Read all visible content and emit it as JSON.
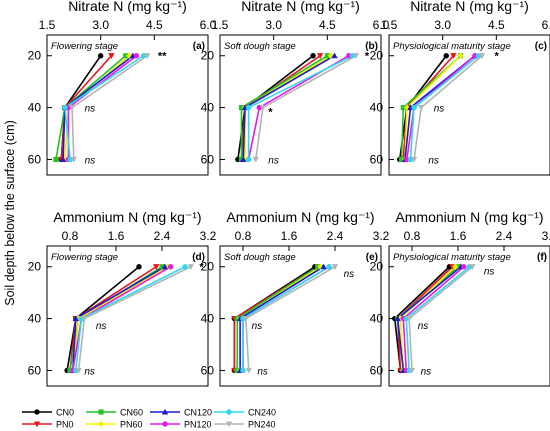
{
  "y_axis_label": "Soil depth below the surface (cm)",
  "y_ticks": [
    20,
    40,
    60
  ],
  "legend": [
    {
      "name": "CN0",
      "color": "#000000",
      "marker": "circle"
    },
    {
      "name": "PN0",
      "color": "#e8141c",
      "marker": "tri-down"
    },
    {
      "name": "CN60",
      "color": "#22c422",
      "marker": "square"
    },
    {
      "name": "PN60",
      "color": "#f5f000",
      "marker": "diamond"
    },
    {
      "name": "CN120",
      "color": "#1b1bd6",
      "marker": "tri-up"
    },
    {
      "name": "PN120",
      "color": "#e818e8",
      "marker": "circle"
    },
    {
      "name": "CN240",
      "color": "#2ed9f0",
      "marker": "circle"
    },
    {
      "name": "PN240",
      "color": "#b4b4b4",
      "marker": "tri-down"
    }
  ],
  "chart_data": [
    {
      "type": "line",
      "panel": "(a)",
      "stage": "Flowering stage",
      "title": "Nitrate N (mg kg⁻¹)",
      "xlim": [
        1.5,
        6.0
      ],
      "xticks": [
        "1.5",
        "3.0",
        "4.5",
        "6.0"
      ],
      "depths": [
        20,
        40,
        60
      ],
      "series": [
        {
          "name": "CN0",
          "values": [
            3.0,
            2.0,
            1.9
          ]
        },
        {
          "name": "PN0",
          "values": [
            3.3,
            2.0,
            1.9
          ]
        },
        {
          "name": "CN60",
          "values": [
            3.7,
            2.0,
            1.75
          ]
        },
        {
          "name": "PN60",
          "values": [
            3.8,
            2.1,
            2.0
          ]
        },
        {
          "name": "CN120",
          "values": [
            3.9,
            2.0,
            1.95
          ]
        },
        {
          "name": "PN120",
          "values": [
            4.0,
            2.1,
            2.1
          ]
        },
        {
          "name": "CN240",
          "values": [
            4.2,
            2.0,
            2.15
          ]
        },
        {
          "name": "PN240",
          "values": [
            4.3,
            2.2,
            2.25
          ]
        }
      ],
      "annotations": [
        {
          "text": "**",
          "depth": 20,
          "x": 4.6
        },
        {
          "text": "ns",
          "depth": 40,
          "x": 2.55
        },
        {
          "text": "ns",
          "depth": 60,
          "x": 2.55
        }
      ]
    },
    {
      "type": "line",
      "panel": "(b)",
      "stage": "Soft dough stage",
      "title": "Nitrate N (mg kg⁻¹)",
      "xlim": [
        1.5,
        6.0
      ],
      "xticks": [
        "1.5",
        "3.0",
        "4.5",
        "6.0"
      ],
      "depths": [
        20,
        40,
        60
      ],
      "series": [
        {
          "name": "CN0",
          "values": [
            4.1,
            2.2,
            2.0
          ]
        },
        {
          "name": "PN0",
          "values": [
            4.3,
            2.2,
            2.1
          ]
        },
        {
          "name": "CN60",
          "values": [
            4.5,
            2.1,
            2.1
          ]
        },
        {
          "name": "PN60",
          "values": [
            4.6,
            2.2,
            2.2
          ]
        },
        {
          "name": "CN120",
          "values": [
            4.7,
            2.2,
            2.15
          ]
        },
        {
          "name": "PN120",
          "values": [
            5.1,
            2.6,
            2.3
          ]
        },
        {
          "name": "CN240",
          "values": [
            5.2,
            2.3,
            2.3
          ]
        },
        {
          "name": "PN240",
          "values": [
            5.3,
            2.7,
            2.5
          ]
        }
      ],
      "annotations": [
        {
          "text": "*",
          "depth": 20,
          "x": 5.55
        },
        {
          "text": "*",
          "depth": 41.5,
          "x": 2.85
        },
        {
          "text": "ns",
          "depth": 60,
          "x": 2.85
        }
      ]
    },
    {
      "type": "line",
      "panel": "(c)",
      "stage": "Physiological maturity stage",
      "title": "Nitrate N (mg kg⁻¹)",
      "xlim": [
        1.5,
        6.0
      ],
      "xticks": [
        "1.5",
        "3.0",
        "4.5",
        "6.0"
      ],
      "depths": [
        20,
        40,
        60
      ],
      "series": [
        {
          "name": "CN0",
          "values": [
            3.1,
            2.0,
            1.8
          ]
        },
        {
          "name": "PN0",
          "values": [
            3.3,
            2.0,
            1.9
          ]
        },
        {
          "name": "CN60",
          "values": [
            3.5,
            1.9,
            1.85
          ]
        },
        {
          "name": "PN60",
          "values": [
            3.5,
            2.0,
            1.95
          ]
        },
        {
          "name": "CN120",
          "values": [
            3.9,
            2.1,
            1.95
          ]
        },
        {
          "name": "PN120",
          "values": [
            3.9,
            2.2,
            2.0
          ]
        },
        {
          "name": "CN240",
          "values": [
            4.0,
            2.2,
            2.1
          ]
        },
        {
          "name": "PN240",
          "values": [
            4.1,
            2.4,
            2.2
          ]
        }
      ],
      "annotations": [
        {
          "text": "*",
          "depth": 20,
          "x": 4.45
        },
        {
          "text": "ns",
          "depth": 40,
          "x": 2.75
        },
        {
          "text": "ns",
          "depth": 60,
          "x": 2.6
        }
      ]
    },
    {
      "type": "line",
      "panel": "(d)",
      "stage": "Flowering stage",
      "title": "Ammonium N (mg kg⁻¹)",
      "xlim": [
        0.4,
        3.2
      ],
      "xticks": [
        "0.8",
        "1.6",
        "2.4",
        "3.2"
      ],
      "depths": [
        20,
        40,
        60
      ],
      "series": [
        {
          "name": "CN0",
          "values": [
            2.0,
            0.9,
            0.75
          ]
        },
        {
          "name": "PN0",
          "values": [
            2.3,
            0.9,
            0.8
          ]
        },
        {
          "name": "CN60",
          "values": [
            2.4,
            0.95,
            0.8
          ]
        },
        {
          "name": "PN60",
          "values": [
            2.5,
            0.95,
            0.85
          ]
        },
        {
          "name": "CN120",
          "values": [
            2.45,
            0.9,
            0.85
          ]
        },
        {
          "name": "PN120",
          "values": [
            2.55,
            1.0,
            0.85
          ]
        },
        {
          "name": "CN240",
          "values": [
            2.8,
            1.0,
            0.9
          ]
        },
        {
          "name": "PN240",
          "values": [
            2.9,
            1.05,
            0.95
          ]
        }
      ],
      "annotations": [
        {
          "text": "*",
          "depth": 20,
          "x": 3.05
        },
        {
          "text": "ns",
          "depth": 42.5,
          "x": 1.25
        },
        {
          "text": "ns",
          "depth": 60,
          "x": 1.05
        }
      ]
    },
    {
      "type": "line",
      "panel": "(e)",
      "stage": "Soft dough stage",
      "title": "Ammonium N (mg kg⁻¹)",
      "xlim": [
        0.4,
        3.2
      ],
      "xticks": [
        "0.8",
        "1.6",
        "2.4",
        "3.2"
      ],
      "depths": [
        20,
        40,
        60
      ],
      "series": [
        {
          "name": "CN0",
          "values": [
            2.05,
            0.65,
            0.65
          ]
        },
        {
          "name": "PN0",
          "values": [
            2.1,
            0.65,
            0.65
          ]
        },
        {
          "name": "CN60",
          "values": [
            2.1,
            0.7,
            0.7
          ]
        },
        {
          "name": "PN60",
          "values": [
            2.15,
            0.75,
            0.75
          ]
        },
        {
          "name": "CN120",
          "values": [
            2.2,
            0.75,
            0.75
          ]
        },
        {
          "name": "PN120",
          "values": [
            2.3,
            0.8,
            0.8
          ]
        },
        {
          "name": "CN240",
          "values": [
            2.3,
            0.8,
            0.8
          ]
        },
        {
          "name": "PN240",
          "values": [
            2.4,
            0.85,
            0.9
          ]
        }
      ],
      "annotations": [
        {
          "text": "ns",
          "depth": 22.5,
          "x": 2.55
        },
        {
          "text": "ns",
          "depth": 42.5,
          "x": 0.95
        },
        {
          "text": "ns",
          "depth": 60,
          "x": 1.05
        }
      ]
    },
    {
      "type": "line",
      "panel": "(f)",
      "stage": "Physiological maturity stage",
      "title": "Ammonium N (mg kg⁻¹)",
      "xlim": [
        0.4,
        3.2
      ],
      "xticks": [
        "0.8",
        "1.6",
        "2.4",
        "3.2"
      ],
      "depths": [
        20,
        40,
        60
      ],
      "series": [
        {
          "name": "CN0",
          "values": [
            1.45,
            0.5,
            0.6
          ]
        },
        {
          "name": "PN0",
          "values": [
            1.5,
            0.55,
            0.6
          ]
        },
        {
          "name": "CN60",
          "values": [
            1.6,
            0.55,
            0.65
          ]
        },
        {
          "name": "PN60",
          "values": [
            1.55,
            0.6,
            0.65
          ]
        },
        {
          "name": "CN120",
          "values": [
            1.65,
            0.55,
            0.65
          ]
        },
        {
          "name": "PN120",
          "values": [
            1.7,
            0.65,
            0.7
          ]
        },
        {
          "name": "CN240",
          "values": [
            1.8,
            0.7,
            0.75
          ]
        },
        {
          "name": "PN240",
          "values": [
            1.85,
            0.75,
            0.8
          ]
        }
      ],
      "annotations": [
        {
          "text": "ns",
          "depth": 21.5,
          "x": 2.05
        },
        {
          "text": "ns",
          "depth": 42.5,
          "x": 0.9
        },
        {
          "text": "ns",
          "depth": 60,
          "x": 0.95
        }
      ]
    }
  ]
}
